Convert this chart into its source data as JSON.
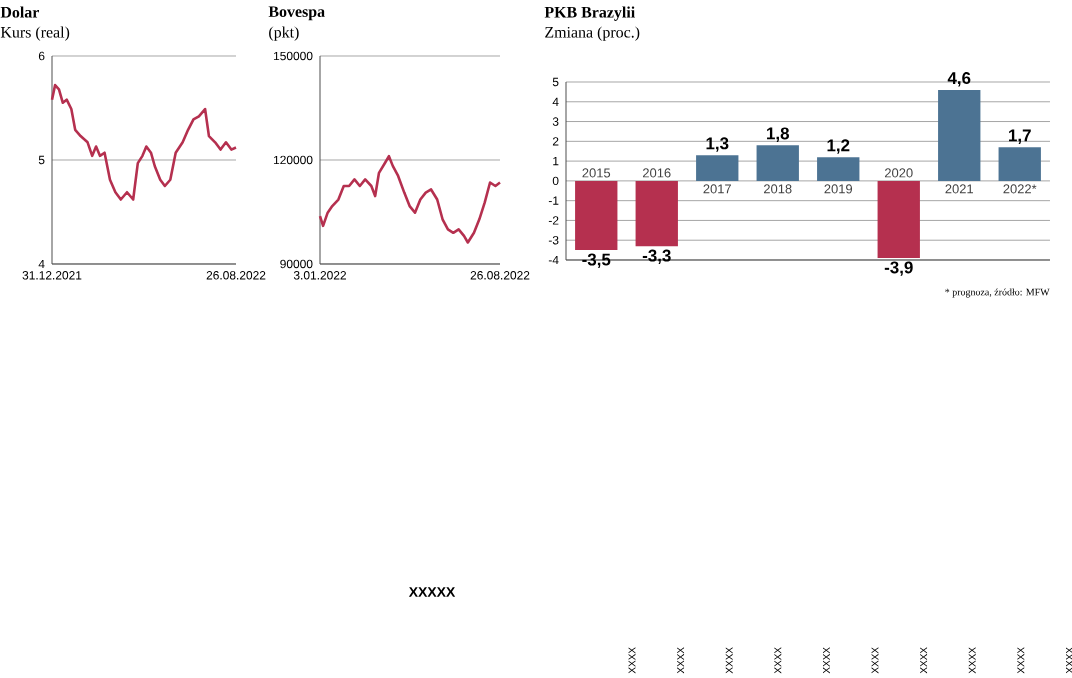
{
  "chart_data": [
    {
      "type": "line",
      "title": "Dolar",
      "subtitle": "Kurs (real)",
      "x": [
        "2021-12-31",
        "2022-01-04",
        "2022-01-09",
        "2022-01-14",
        "2022-01-19",
        "2022-01-25",
        "2022-01-30",
        "2022-02-06",
        "2022-02-15",
        "2022-02-21",
        "2022-02-26",
        "2022-03-03",
        "2022-03-09",
        "2022-03-16",
        "2022-03-23",
        "2022-03-30",
        "2022-04-07",
        "2022-04-15",
        "2022-04-21",
        "2022-04-27",
        "2022-05-02",
        "2022-05-08",
        "2022-05-13",
        "2022-05-20",
        "2022-05-26",
        "2022-06-02",
        "2022-06-09",
        "2022-06-18",
        "2022-06-25",
        "2022-07-02",
        "2022-07-09",
        "2022-07-17",
        "2022-07-22",
        "2022-07-30",
        "2022-08-06",
        "2022-08-13",
        "2022-08-20",
        "2022-08-26"
      ],
      "series": [
        {
          "color": "#b5304f",
          "values": [
            5.58,
            5.72,
            5.68,
            5.55,
            5.58,
            5.49,
            5.29,
            5.23,
            5.17,
            5.04,
            5.13,
            5.04,
            5.07,
            4.81,
            4.69,
            4.62,
            4.69,
            4.62,
            4.97,
            5.04,
            5.13,
            5.07,
            4.94,
            4.81,
            4.75,
            4.81,
            5.07,
            5.17,
            5.29,
            5.39,
            5.42,
            5.49,
            5.23,
            5.17,
            5.1,
            5.17,
            5.1,
            5.12
          ]
        }
      ],
      "xlim": [
        "2021-12-31",
        "2022-08-26"
      ],
      "xticks": [
        {
          "value": "2021-12-31",
          "label": "31.12.2021"
        },
        {
          "value": "2022-08-26",
          "label": "26.08.2022"
        }
      ],
      "ylim": [
        4,
        6
      ],
      "yticks": [
        4,
        5,
        6
      ],
      "grid": "y"
    },
    {
      "type": "line",
      "title": "Bovespa",
      "subtitle": "(pkt)",
      "x": [
        "2022-01-03",
        "2022-01-07",
        "2022-01-13",
        "2022-01-19",
        "2022-01-27",
        "2022-02-03",
        "2022-02-10",
        "2022-02-17",
        "2022-02-24",
        "2022-03-03",
        "2022-03-11",
        "2022-03-16",
        "2022-03-21",
        "2022-03-29",
        "2022-04-03",
        "2022-04-08",
        "2022-04-15",
        "2022-04-23",
        "2022-04-30",
        "2022-05-07",
        "2022-05-14",
        "2022-05-21",
        "2022-05-28",
        "2022-06-05",
        "2022-06-12",
        "2022-06-19",
        "2022-06-26",
        "2022-07-03",
        "2022-07-10",
        "2022-07-15",
        "2022-07-23",
        "2022-07-30",
        "2022-08-06",
        "2022-08-13",
        "2022-08-20",
        "2022-08-26"
      ],
      "series": [
        {
          "color": "#b5304f",
          "values": [
            103800,
            101000,
            104800,
            106700,
            108600,
            112500,
            112500,
            114400,
            112500,
            114400,
            112500,
            109600,
            116300,
            119200,
            121100,
            118300,
            115400,
            110600,
            106700,
            104800,
            108600,
            110600,
            111500,
            108600,
            102900,
            100000,
            99000,
            100000,
            98100,
            96200,
            99000,
            102900,
            107700,
            113500,
            112500,
            113500
          ]
        }
      ],
      "xlim": [
        "2022-01-03",
        "2022-08-26"
      ],
      "xticks": [
        {
          "value": "2022-01-03",
          "label": "3.01.2022"
        },
        {
          "value": "2022-08-26",
          "label": "26.08.2022"
        }
      ],
      "ylim": [
        90000,
        150000
      ],
      "yticks": [
        90000,
        120000,
        150000
      ],
      "grid": "y"
    },
    {
      "type": "bar",
      "title": "PKB Brazylii",
      "subtitle": "Zmiana (proc.)",
      "categories": [
        "2015",
        "2016",
        "2017",
        "2018",
        "2019",
        "2020",
        "2021",
        "2022*"
      ],
      "values": [
        -3.5,
        -3.3,
        1.3,
        1.8,
        1.2,
        -3.9,
        4.6,
        1.7
      ],
      "colors": [
        "#b5304f",
        "#b5304f",
        "#4c7393",
        "#4c7393",
        "#4c7393",
        "#b5304f",
        "#4c7393",
        "#4c7393"
      ],
      "value_labels": [
        "-3,5",
        "-3,3",
        "1,3",
        "1,8",
        "1,2",
        "-3,9",
        "4,6",
        "1,7"
      ],
      "ylim": [
        -4,
        5
      ],
      "yticks": [
        -4,
        -3,
        -2,
        -1,
        0,
        1,
        2,
        3,
        4,
        5
      ],
      "grid": "y",
      "annotations": [
        "* prognoza, źródło: MFW",
        "XXXXX",
        "XXXX",
        "XXXX",
        "XXXX",
        "XXXX",
        "XXXX",
        "XXXX",
        "XXXX",
        "XXXX",
        "XXXX",
        "XXXX"
      ]
    }
  ]
}
